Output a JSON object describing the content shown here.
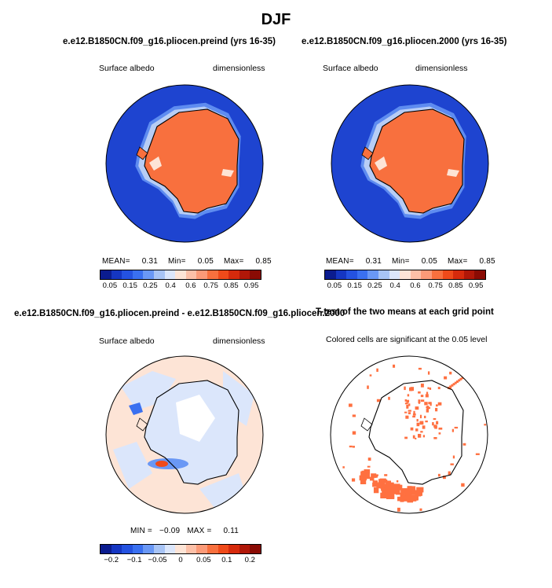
{
  "figure": {
    "season": "DJF"
  },
  "panels": {
    "top_left": {
      "title": "e.e12.B1850CN.f09_g16.pliocen.preind (yrs 16-35)",
      "left_label": "Surface albedo",
      "right_label": "dimensionless",
      "stats": {
        "mean_label": "MEAN=",
        "mean": "0.31",
        "min_label": "Min=",
        "min": "0.05",
        "max_label": "Max=",
        "max": "0.85"
      }
    },
    "top_right": {
      "title": "e.e12.B1850CN.f09_g16.pliocen.2000 (yrs 16-35)",
      "left_label": "Surface albedo",
      "right_label": "dimensionless",
      "stats": {
        "mean_label": "MEAN=",
        "mean": "0.31",
        "min_label": "Min=",
        "min": "0.05",
        "max_label": "Max=",
        "max": "0.85"
      }
    },
    "bottom_left": {
      "title": "e.e12.B1850CN.f09_g16.pliocen.preind - e.e12.B1850CN.f09_g16.pliocen.2000",
      "left_label": "Surface albedo",
      "right_label": "dimensionless",
      "stats": {
        "min_label": "MIN =",
        "min": "−0.09",
        "max_label": "MAX =",
        "max": "0.11"
      }
    },
    "bottom_right": {
      "title": "T-test of the two means at each grid point",
      "subtitle": "Colored cells are significant at the 0.05 level",
      "significant_color": "#ff7040"
    }
  },
  "colorbars": {
    "albedo": {
      "colors": [
        "#0b1c8f",
        "#1536c2",
        "#2452e0",
        "#3a70f0",
        "#6a98f5",
        "#a8c4f5",
        "#dbe6fb",
        "#fde4d6",
        "#fcc0a8",
        "#fb9a78",
        "#f8703e",
        "#ef4a1a",
        "#d62a0c",
        "#b01708",
        "#8a0b04"
      ],
      "tick_labels": [
        "0.05",
        "0.15",
        "0.25",
        "0.4",
        "0.6",
        "0.75",
        "0.85",
        "0.95"
      ]
    },
    "difference": {
      "colors": [
        "#0b1c8f",
        "#1536c2",
        "#2452e0",
        "#3a70f0",
        "#6a98f5",
        "#a8c4f5",
        "#dbe6fb",
        "#fde4d6",
        "#fcc0a8",
        "#fb9a78",
        "#f8703e",
        "#ef4a1a",
        "#d62a0c",
        "#b01708",
        "#8a0b04"
      ],
      "tick_labels": [
        "−0.2",
        "−0.1",
        "−0.05",
        "0",
        "0.05",
        "0.1",
        "0.2"
      ]
    }
  }
}
